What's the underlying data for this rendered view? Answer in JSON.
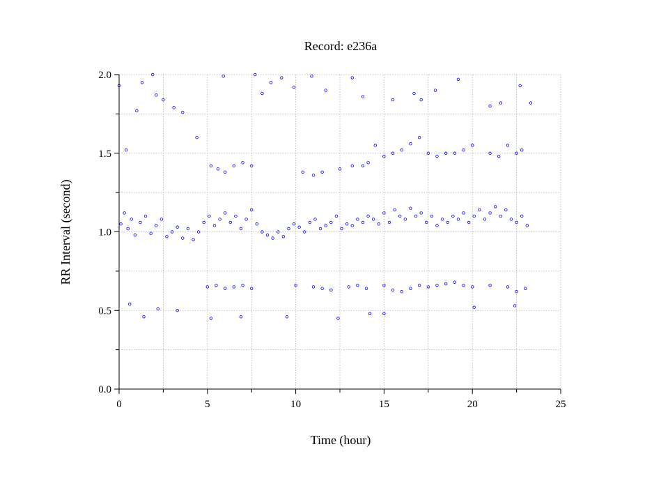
{
  "chart_data": {
    "type": "scatter",
    "title": "Record:  e236a",
    "xlabel": "Time (hour)",
    "ylabel": "RR Interval (second)",
    "xlim": [
      0,
      25
    ],
    "ylim": [
      0.0,
      2.0
    ],
    "x_ticks": [
      0,
      5,
      10,
      15,
      20,
      25
    ],
    "x_tick_labels": [
      "0",
      "5",
      "10",
      "15",
      "20",
      "25"
    ],
    "x_minor_ticks": [
      2.5,
      7.5,
      12.5,
      17.5,
      22.5
    ],
    "y_ticks": [
      0.0,
      0.5,
      1.0,
      1.5,
      2.0
    ],
    "y_tick_labels": [
      "0.0",
      "0.5",
      "1.0",
      "1.5",
      "2.0"
    ],
    "y_minor_ticks": [
      0.25,
      0.75,
      1.25,
      1.75
    ],
    "grid": true,
    "legend": "none",
    "marker_color": "#0000ff",
    "marker": "open-circle",
    "series": [
      {
        "x": [
          0.1,
          0.3,
          0.5,
          0.7,
          0.9,
          1.2,
          1.5,
          1.8,
          2.1,
          2.4,
          2.7,
          3.0,
          3.3,
          3.6,
          3.9,
          4.2,
          4.5,
          4.8,
          5.1,
          5.4,
          5.7,
          6.0,
          6.3,
          6.6,
          6.9,
          7.2,
          7.5,
          7.8,
          8.1,
          8.4,
          8.7,
          9.0,
          9.3,
          9.6,
          9.9,
          10.2,
          10.5,
          10.8,
          11.1,
          11.4,
          11.7,
          12.0,
          12.3,
          12.6,
          12.9,
          13.2,
          13.5,
          13.8,
          14.1,
          14.4,
          14.7,
          15.0,
          15.3,
          15.6,
          15.9,
          16.2,
          16.5,
          16.8,
          17.1,
          17.4,
          17.7,
          18.0,
          18.3,
          18.6,
          18.9,
          19.2,
          19.5,
          19.8,
          20.1,
          20.4,
          20.7,
          21.0,
          21.3,
          21.6,
          21.9,
          22.2,
          22.5,
          22.8,
          23.1
        ],
        "y": [
          1.05,
          1.12,
          1.02,
          1.08,
          0.98,
          1.06,
          1.1,
          0.99,
          1.04,
          1.08,
          0.97,
          1.0,
          1.03,
          0.96,
          1.02,
          0.95,
          1.0,
          1.06,
          1.1,
          1.04,
          1.08,
          1.12,
          1.06,
          1.1,
          1.02,
          1.08,
          1.14,
          1.05,
          1.0,
          0.98,
          0.96,
          1.0,
          0.97,
          1.02,
          1.05,
          1.03,
          1.0,
          1.06,
          1.08,
          1.02,
          1.04,
          1.06,
          1.1,
          1.02,
          1.05,
          1.04,
          1.08,
          1.06,
          1.1,
          1.08,
          1.05,
          1.12,
          1.06,
          1.14,
          1.1,
          1.08,
          1.15,
          1.1,
          1.12,
          1.06,
          1.1,
          1.04,
          1.08,
          1.06,
          1.1,
          1.08,
          1.12,
          1.06,
          1.1,
          1.14,
          1.08,
          1.12,
          1.16,
          1.1,
          1.14,
          1.08,
          1.06,
          1.1,
          1.04
        ]
      },
      {
        "x": [
          5.2,
          5.6,
          6.0,
          6.5,
          7.0,
          7.5,
          10.4,
          11.0,
          11.5,
          12.5,
          13.2,
          13.8,
          14.1,
          15.0,
          15.5,
          16.0,
          16.5,
          17.0,
          17.5,
          18.0,
          18.5,
          19.0,
          19.5,
          20.0,
          21.0,
          21.5,
          22.0,
          22.5,
          22.8
        ],
        "y": [
          1.42,
          1.4,
          1.38,
          1.42,
          1.44,
          1.42,
          1.38,
          1.36,
          1.38,
          1.4,
          1.42,
          1.42,
          1.44,
          1.48,
          1.5,
          1.52,
          1.56,
          1.6,
          1.5,
          1.48,
          1.5,
          1.5,
          1.52,
          1.55,
          1.5,
          1.48,
          1.55,
          1.5,
          1.52
        ]
      },
      {
        "x": [
          5.0,
          5.5,
          6.0,
          6.5,
          7.0,
          7.5,
          10.0,
          11.0,
          11.5,
          12.0,
          13.0,
          13.5,
          14.0,
          15.0,
          15.5,
          16.0,
          16.5,
          17.0,
          17.5,
          18.0,
          18.5,
          19.0,
          19.5,
          20.0,
          21.0,
          22.0,
          22.5,
          23.0
        ],
        "y": [
          0.65,
          0.66,
          0.64,
          0.65,
          0.66,
          0.64,
          0.66,
          0.65,
          0.64,
          0.63,
          0.65,
          0.66,
          0.64,
          0.66,
          0.63,
          0.62,
          0.64,
          0.66,
          0.65,
          0.66,
          0.67,
          0.68,
          0.66,
          0.65,
          0.66,
          0.65,
          0.62,
          0.64
        ]
      },
      {
        "x": [
          0.0,
          0.4,
          1.0,
          1.3,
          1.9,
          2.1,
          2.5,
          3.1,
          3.6,
          4.4,
          5.9,
          7.7,
          8.1,
          8.6,
          9.2,
          9.9,
          10.9,
          11.7,
          13.2,
          13.8,
          14.5,
          15.5,
          16.7,
          17.1,
          17.9,
          19.2,
          21.0,
          21.6,
          22.7,
          23.3,
          0.6,
          1.4,
          2.2,
          3.3,
          5.2,
          6.9,
          9.5,
          12.4,
          14.2,
          15.0,
          20.1,
          22.4
        ],
        "y": [
          1.93,
          1.52,
          1.77,
          1.95,
          2.0,
          1.87,
          1.84,
          1.79,
          1.76,
          1.6,
          1.99,
          2.0,
          1.88,
          1.95,
          1.98,
          1.92,
          1.99,
          1.9,
          1.98,
          1.86,
          1.55,
          1.84,
          1.88,
          1.84,
          1.9,
          1.97,
          1.8,
          1.82,
          1.93,
          1.82,
          0.54,
          0.46,
          0.51,
          0.5,
          0.45,
          0.46,
          0.46,
          0.45,
          0.48,
          0.48,
          0.52,
          0.53
        ]
      }
    ]
  }
}
